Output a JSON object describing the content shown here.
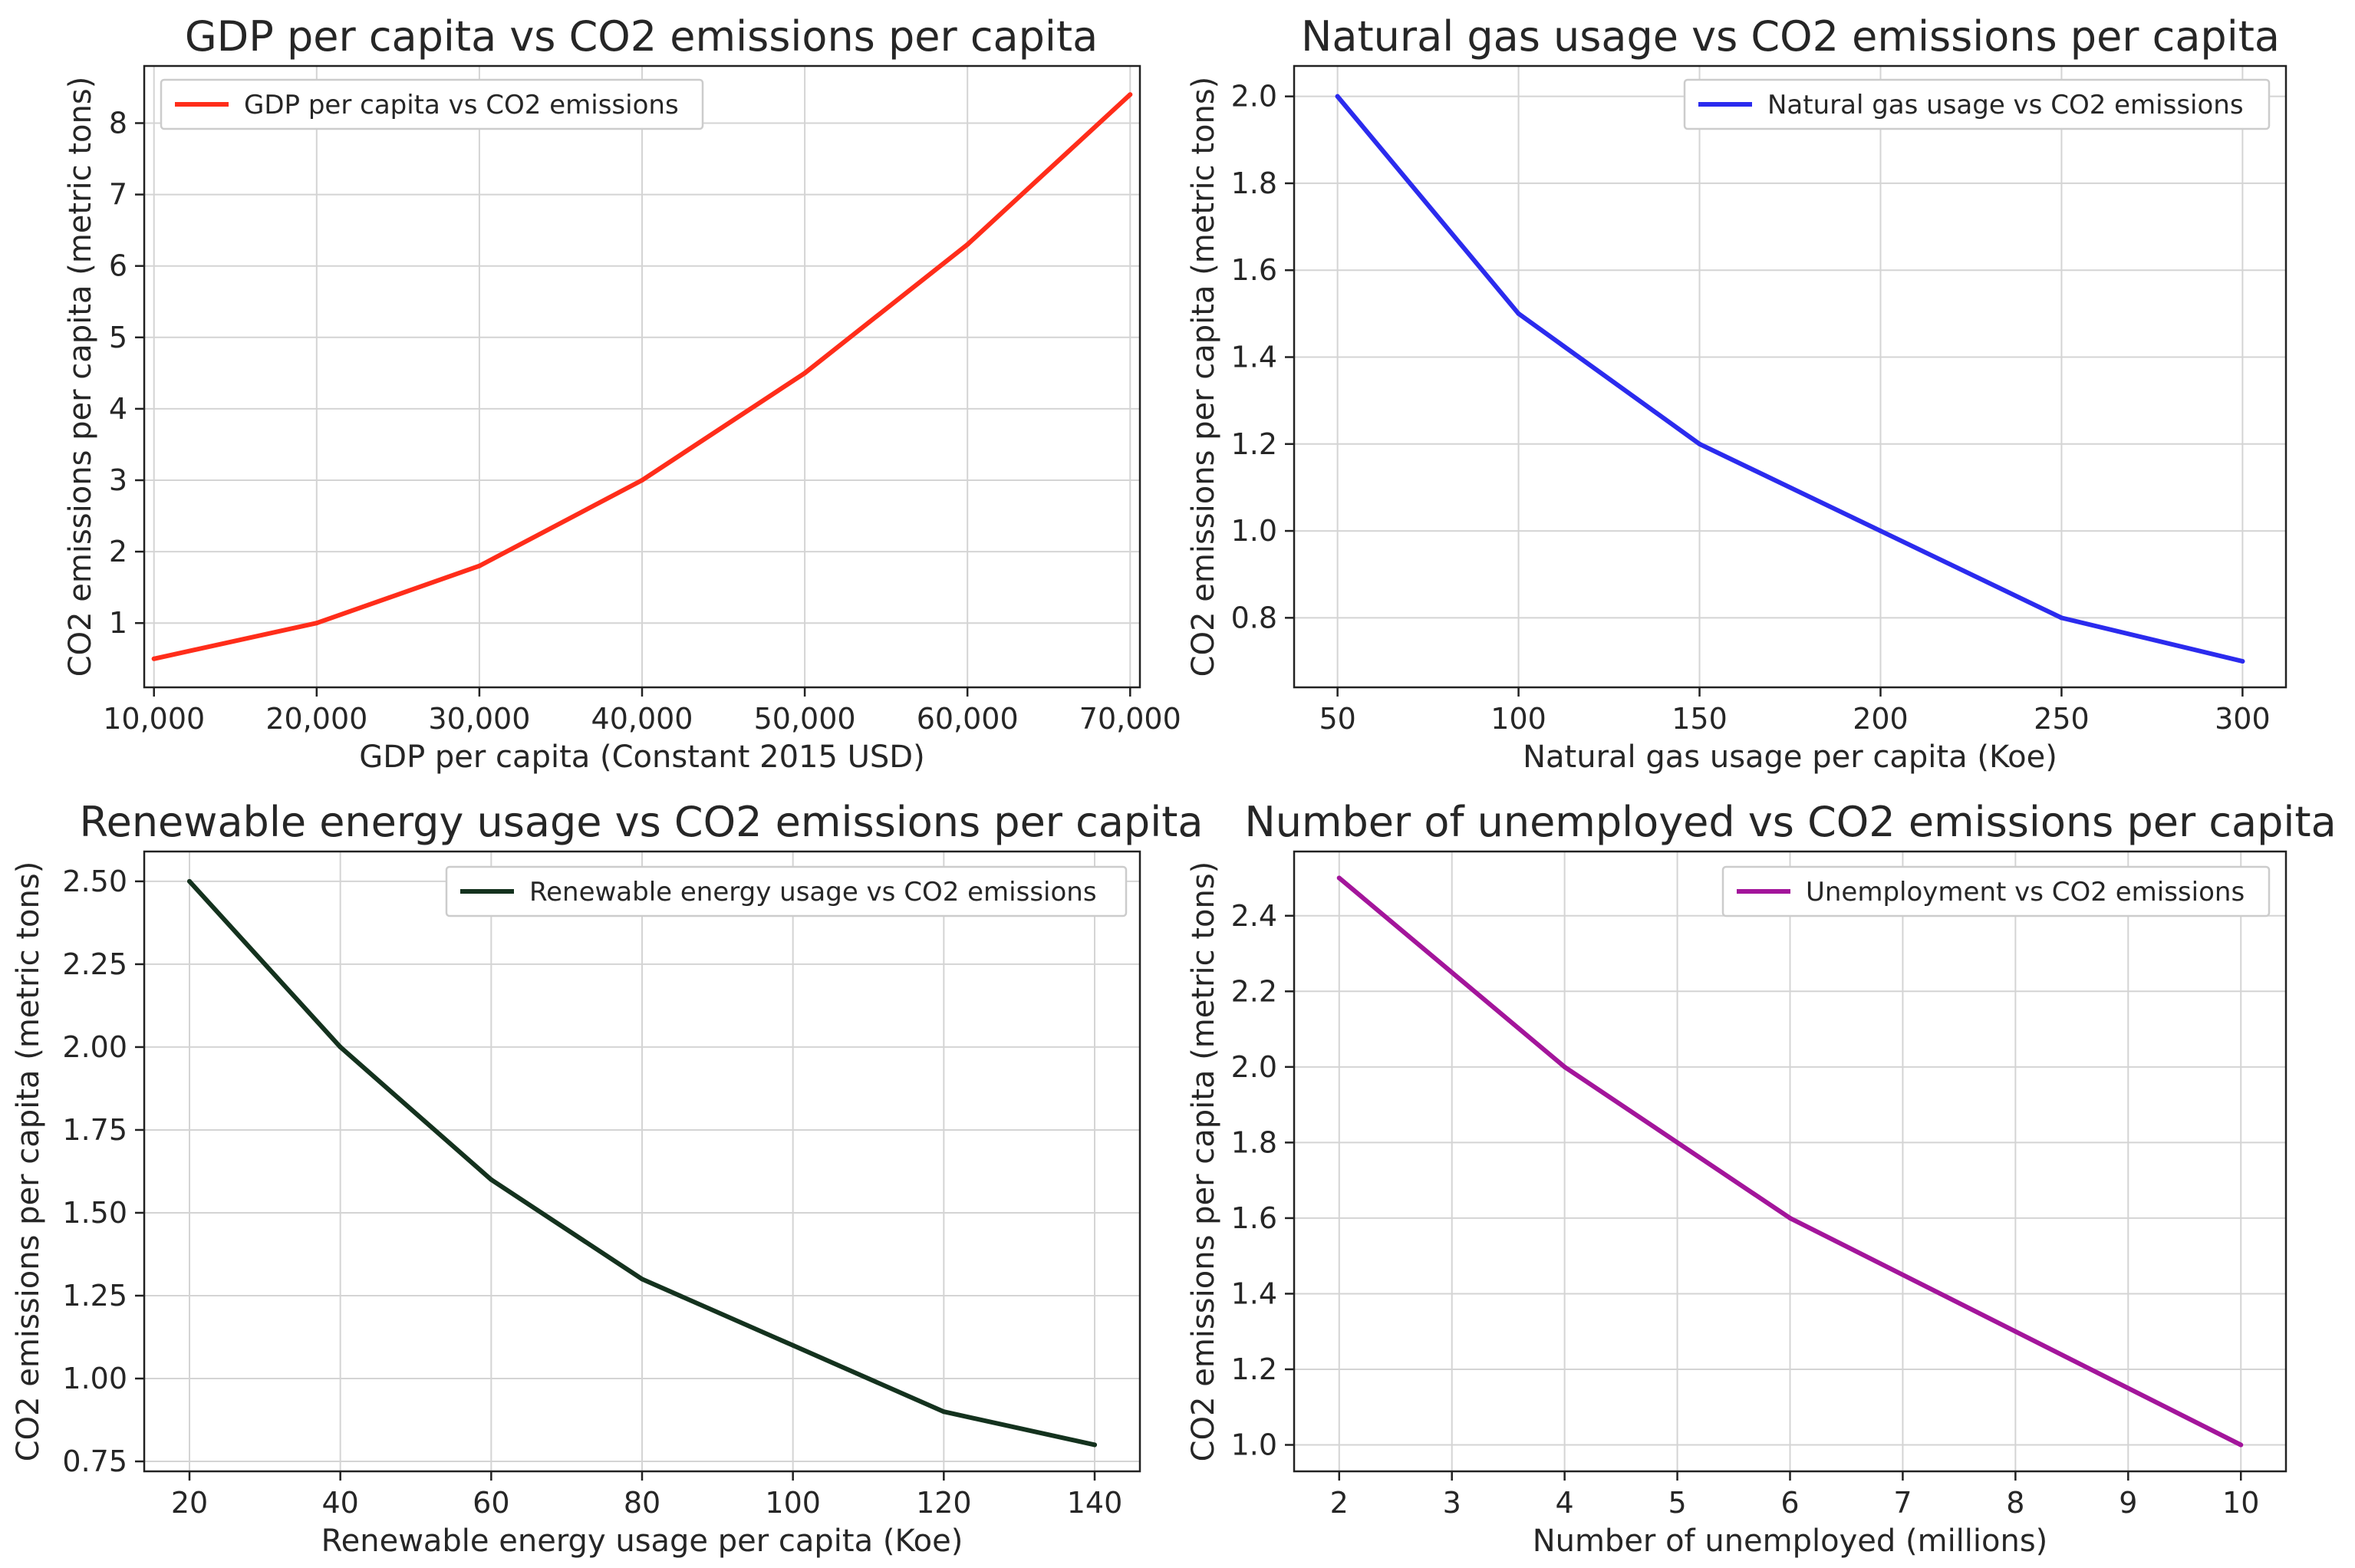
{
  "chart_data": [
    {
      "type": "line",
      "title": "GDP per capita vs CO2 emissions per capita",
      "xlabel": "GDP per capita (Constant 2015 USD)",
      "ylabel": "CO2 emissions per capita (metric tons)",
      "x": [
        10000,
        20000,
        30000,
        40000,
        50000,
        60000,
        70000
      ],
      "series": [
        {
          "name": "GDP per capita vs CO2 emissions",
          "values": [
            0.5,
            1.0,
            1.8,
            3.0,
            4.5,
            6.3,
            8.4
          ],
          "color": "#ff2d1a"
        }
      ],
      "xlim": [
        9400,
        70600
      ],
      "ylim": [
        0.1,
        8.8
      ],
      "xticks": [
        10000,
        20000,
        30000,
        40000,
        50000,
        60000,
        70000
      ],
      "xtick_labels": [
        "10,000",
        "20,000",
        "30,000",
        "40,000",
        "50,000",
        "60,000",
        "70,000"
      ],
      "yticks": [
        1,
        2,
        3,
        4,
        5,
        6,
        7,
        8
      ],
      "ytick_labels": [
        "1",
        "2",
        "3",
        "4",
        "5",
        "6",
        "7",
        "8"
      ],
      "grid": true,
      "legend_position": "top-left"
    },
    {
      "type": "line",
      "title": "Natural gas usage vs CO2 emissions per capita",
      "xlabel": "Natural gas usage per capita (Koe)",
      "ylabel": "CO2 emissions per capita (metric tons)",
      "x": [
        50,
        100,
        150,
        200,
        250,
        300
      ],
      "series": [
        {
          "name": "Natural gas usage vs CO2 emissions",
          "values": [
            2.0,
            1.5,
            1.2,
            1.0,
            0.8,
            0.7
          ],
          "color": "#2b2bee"
        }
      ],
      "xlim": [
        38,
        312
      ],
      "ylim": [
        0.64,
        2.07
      ],
      "xticks": [
        50,
        100,
        150,
        200,
        250,
        300
      ],
      "xtick_labels": [
        "50",
        "100",
        "150",
        "200",
        "250",
        "300"
      ],
      "yticks": [
        0.8,
        1.0,
        1.2,
        1.4,
        1.6,
        1.8,
        2.0
      ],
      "ytick_labels": [
        "0.8",
        "1.0",
        "1.2",
        "1.4",
        "1.6",
        "1.8",
        "2.0"
      ],
      "grid": true,
      "legend_position": "top-right"
    },
    {
      "type": "line",
      "title": "Renewable energy usage vs CO2 emissions per capita",
      "xlabel": "Renewable energy usage per capita (Koe)",
      "ylabel": "CO2 emissions per capita (metric tons)",
      "x": [
        20,
        40,
        60,
        80,
        100,
        120,
        140
      ],
      "series": [
        {
          "name": "Renewable energy usage vs CO2 emissions",
          "values": [
            2.5,
            2.0,
            1.6,
            1.3,
            1.1,
            0.9,
            0.8
          ],
          "color": "#14321e"
        }
      ],
      "xlim": [
        14,
        146
      ],
      "ylim": [
        0.72,
        2.59
      ],
      "xticks": [
        20,
        40,
        60,
        80,
        100,
        120,
        140
      ],
      "xtick_labels": [
        "20",
        "40",
        "60",
        "80",
        "100",
        "120",
        "140"
      ],
      "yticks": [
        0.75,
        1.0,
        1.25,
        1.5,
        1.75,
        2.0,
        2.25,
        2.5
      ],
      "ytick_labels": [
        "0.75",
        "1.00",
        "1.25",
        "1.50",
        "1.75",
        "2.00",
        "2.25",
        "2.50"
      ],
      "grid": true,
      "legend_position": "top-right"
    },
    {
      "type": "line",
      "title": "Number of unemployed vs CO2 emissions per capita",
      "xlabel": "Number of unemployed (millions)",
      "ylabel": "CO2 emissions per capita (metric tons)",
      "x": [
        2,
        4,
        6,
        8,
        10
      ],
      "series": [
        {
          "name": "Unemployment vs CO2 emissions",
          "values": [
            2.5,
            2.0,
            1.6,
            1.3,
            1.0
          ],
          "color": "#a3159b"
        }
      ],
      "xlim": [
        1.6,
        10.4
      ],
      "ylim": [
        0.93,
        2.57
      ],
      "xticks": [
        2,
        3,
        4,
        5,
        6,
        7,
        8,
        9,
        10
      ],
      "xtick_labels": [
        "2",
        "3",
        "4",
        "5",
        "6",
        "7",
        "8",
        "9",
        "10"
      ],
      "yticks": [
        1.0,
        1.2,
        1.4,
        1.6,
        1.8,
        2.0,
        2.2,
        2.4
      ],
      "ytick_labels": [
        "1.0",
        "1.2",
        "1.4",
        "1.6",
        "1.8",
        "2.0",
        "2.2",
        "2.4"
      ],
      "grid": true,
      "legend_position": "top-right"
    }
  ]
}
